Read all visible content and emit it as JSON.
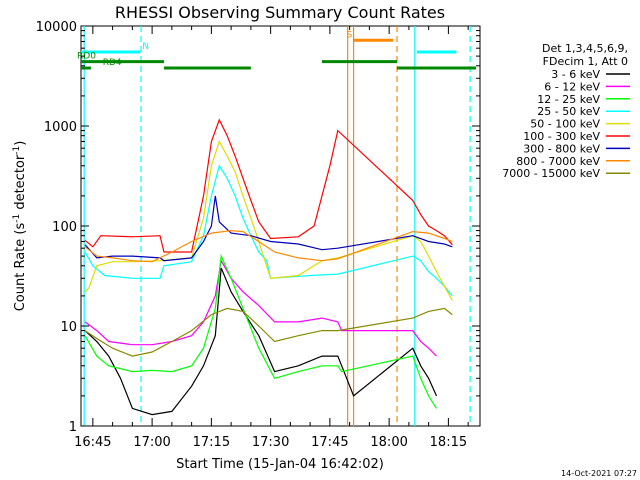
{
  "chart_data": {
    "type": "line",
    "title": "RHESSI Observing Summary Count Rates",
    "xlabel": "Start Time (15-Jan-04 16:42:02)",
    "ylabel_main": "Count Rate (s",
    "ylabel_sup1": "-1",
    "ylabel_mid": " detector",
    "ylabel_sup2": "-1",
    "ylabel_end": ")",
    "yscale": "log",
    "ylim": [
      1,
      10000
    ],
    "xlim_minutes": [
      -3,
      98
    ],
    "x_unit": "minutes from 16:45",
    "yticks": [
      {
        "v": 1,
        "label": "1"
      },
      {
        "v": 10,
        "label": "10"
      },
      {
        "v": 100,
        "label": "100"
      },
      {
        "v": 1000,
        "label": "1000"
      },
      {
        "v": 10000,
        "label": "10000"
      }
    ],
    "xticks": [
      {
        "m": 0,
        "label": "16:45"
      },
      {
        "m": 15,
        "label": "17:00"
      },
      {
        "m": 30,
        "label": "17:15"
      },
      {
        "m": 45,
        "label": "17:30"
      },
      {
        "m": 60,
        "label": "17:45"
      },
      {
        "m": 75,
        "label": "18:00"
      },
      {
        "m": 90,
        "label": "18:15"
      }
    ],
    "legend_header": [
      "Det 1,3,4,5,6,9,",
      "FDecim 1, Att 0"
    ],
    "series": [
      {
        "name": "3 - 6 keV",
        "color": "#000000",
        "points": [
          [
            -2,
            9
          ],
          [
            1,
            7
          ],
          [
            4,
            5
          ],
          [
            7,
            3
          ],
          [
            10,
            1.5
          ],
          [
            15,
            1.3
          ],
          [
            20,
            1.4
          ],
          [
            25,
            2.5
          ],
          [
            28,
            4
          ],
          [
            31,
            8
          ],
          [
            32.5,
            38
          ],
          [
            35,
            22
          ],
          [
            38,
            14
          ],
          [
            42,
            8
          ],
          [
            46,
            3.5
          ],
          [
            52,
            4
          ],
          [
            58,
            5
          ],
          [
            62,
            5
          ],
          [
            63,
            4
          ],
          [
            66,
            2
          ],
          [
            81,
            6
          ],
          [
            83,
            4
          ],
          [
            85,
            3
          ],
          [
            87,
            2
          ]
        ]
      },
      {
        "name": "6 - 12 keV",
        "color": "#ff00ff",
        "points": [
          [
            -2,
            11
          ],
          [
            1,
            9
          ],
          [
            4,
            7
          ],
          [
            10,
            6.5
          ],
          [
            15,
            6.5
          ],
          [
            20,
            7
          ],
          [
            25,
            8
          ],
          [
            28,
            11
          ],
          [
            31,
            20
          ],
          [
            32.5,
            45
          ],
          [
            35,
            30
          ],
          [
            38,
            22
          ],
          [
            42,
            16
          ],
          [
            46,
            11
          ],
          [
            52,
            11
          ],
          [
            58,
            12
          ],
          [
            62,
            11
          ],
          [
            63,
            9
          ],
          [
            81,
            9
          ],
          [
            83,
            7
          ],
          [
            85,
            6
          ],
          [
            87,
            5
          ]
        ]
      },
      {
        "name": "12 - 25 keV",
        "color": "#00ff00",
        "points": [
          [
            -2,
            8
          ],
          [
            1,
            5
          ],
          [
            4,
            4
          ],
          [
            10,
            3.5
          ],
          [
            15,
            3.6
          ],
          [
            20,
            3.5
          ],
          [
            25,
            4
          ],
          [
            28,
            6
          ],
          [
            31,
            15
          ],
          [
            32.5,
            50
          ],
          [
            35,
            30
          ],
          [
            38,
            15
          ],
          [
            42,
            6
          ],
          [
            46,
            3
          ],
          [
            52,
            3.5
          ],
          [
            58,
            4
          ],
          [
            62,
            4
          ],
          [
            63,
            3.5
          ],
          [
            81,
            5
          ],
          [
            83,
            3
          ],
          [
            85,
            2
          ],
          [
            87,
            1.5
          ]
        ]
      },
      {
        "name": "25 - 50 keV",
        "color": "#00ffff",
        "points": [
          [
            -2,
            55
          ],
          [
            0,
            40
          ],
          [
            3,
            32
          ],
          [
            10,
            30
          ],
          [
            17,
            30
          ],
          [
            18,
            40
          ],
          [
            25,
            44
          ],
          [
            28,
            80
          ],
          [
            30,
            200
          ],
          [
            32,
            400
          ],
          [
            34,
            300
          ],
          [
            36,
            200
          ],
          [
            38,
            120
          ],
          [
            40,
            80
          ],
          [
            42,
            55
          ],
          [
            44,
            45
          ],
          [
            45,
            30
          ],
          [
            55,
            32
          ],
          [
            62,
            33
          ],
          [
            81,
            50
          ],
          [
            83,
            45
          ],
          [
            85,
            35
          ],
          [
            87,
            30
          ],
          [
            89,
            25
          ],
          [
            91,
            20
          ]
        ]
      },
      {
        "name": "50 - 100 keV",
        "color": "#dddd00",
        "points": [
          [
            -2,
            22
          ],
          [
            -1,
            24
          ],
          [
            1,
            40
          ],
          [
            5,
            44
          ],
          [
            10,
            44
          ],
          [
            17,
            45
          ],
          [
            20,
            46
          ],
          [
            25,
            48
          ],
          [
            28,
            120
          ],
          [
            30,
            400
          ],
          [
            32,
            700
          ],
          [
            34,
            500
          ],
          [
            36,
            350
          ],
          [
            38,
            200
          ],
          [
            40,
            120
          ],
          [
            42,
            70
          ],
          [
            45,
            30
          ],
          [
            52,
            32
          ],
          [
            58,
            45
          ],
          [
            62,
            48
          ],
          [
            81,
            80
          ],
          [
            83,
            70
          ],
          [
            85,
            50
          ],
          [
            87,
            35
          ],
          [
            89,
            25
          ],
          [
            91,
            18
          ]
        ]
      },
      {
        "name": "100 - 300 keV",
        "color": "#ff0000",
        "points": [
          [
            -2,
            72
          ],
          [
            0,
            62
          ],
          [
            2,
            80
          ],
          [
            10,
            78
          ],
          [
            17,
            80
          ],
          [
            18,
            55
          ],
          [
            25,
            55
          ],
          [
            28,
            200
          ],
          [
            30,
            700
          ],
          [
            32,
            1150
          ],
          [
            34,
            800
          ],
          [
            36,
            500
          ],
          [
            38,
            300
          ],
          [
            40,
            180
          ],
          [
            42,
            110
          ],
          [
            45,
            75
          ],
          [
            52,
            78
          ],
          [
            56,
            100
          ],
          [
            58,
            200
          ],
          [
            60,
            400
          ],
          [
            62,
            900
          ],
          [
            81,
            180
          ],
          [
            83,
            130
          ],
          [
            85,
            100
          ],
          [
            87,
            90
          ],
          [
            89,
            80
          ],
          [
            91,
            65
          ]
        ]
      },
      {
        "name": "300 - 800 keV",
        "color": "#0000bb",
        "points": [
          [
            -2,
            65
          ],
          [
            1,
            48
          ],
          [
            5,
            50
          ],
          [
            10,
            50
          ],
          [
            17,
            48
          ],
          [
            18,
            45
          ],
          [
            25,
            48
          ],
          [
            28,
            70
          ],
          [
            30,
            100
          ],
          [
            31,
            200
          ],
          [
            32,
            110
          ],
          [
            35,
            85
          ],
          [
            40,
            80
          ],
          [
            45,
            70
          ],
          [
            52,
            66
          ],
          [
            58,
            58
          ],
          [
            62,
            60
          ],
          [
            81,
            80
          ],
          [
            85,
            70
          ],
          [
            89,
            66
          ],
          [
            91,
            62
          ]
        ]
      },
      {
        "name": "800 - 7000 keV",
        "color": "#ff8800",
        "points": [
          [
            -2,
            62
          ],
          [
            1,
            50
          ],
          [
            5,
            48
          ],
          [
            10,
            45
          ],
          [
            15,
            44
          ],
          [
            20,
            55
          ],
          [
            25,
            70
          ],
          [
            30,
            85
          ],
          [
            35,
            90
          ],
          [
            38,
            88
          ],
          [
            42,
            70
          ],
          [
            46,
            55
          ],
          [
            52,
            48
          ],
          [
            58,
            45
          ],
          [
            62,
            47
          ],
          [
            81,
            88
          ],
          [
            85,
            85
          ],
          [
            89,
            75
          ],
          [
            91,
            70
          ]
        ]
      },
      {
        "name": "7000 - 15000 keV",
        "color": "#888800",
        "points": [
          [
            -2,
            9
          ],
          [
            1,
            7.5
          ],
          [
            5,
            6
          ],
          [
            10,
            5
          ],
          [
            15,
            5.5
          ],
          [
            20,
            7
          ],
          [
            25,
            9
          ],
          [
            30,
            13
          ],
          [
            34,
            15
          ],
          [
            38,
            14
          ],
          [
            42,
            10
          ],
          [
            46,
            7
          ],
          [
            52,
            8
          ],
          [
            58,
            9
          ],
          [
            62,
            9
          ],
          [
            81,
            12
          ],
          [
            85,
            14
          ],
          [
            89,
            15
          ],
          [
            91,
            13
          ]
        ]
      }
    ],
    "state_bars": [
      {
        "label": "N",
        "color": "#00ffff",
        "y": 5500,
        "segments": [
          [
            -3,
            12
          ],
          [
            82,
            92
          ]
        ],
        "label_at": 12.5
      },
      {
        "label": "S",
        "color": "#ff8800",
        "y": 7200,
        "segments": [
          [
            66,
            76
          ]
        ],
        "label_at": 64.2
      },
      {
        "label": "RD0",
        "color": "#008800",
        "y": 4400,
        "segments": [
          [
            -3,
            18
          ],
          [
            58,
            77
          ]
        ],
        "label_at": -4
      },
      {
        "label": "RD4",
        "color": "#008800",
        "y": 3800,
        "segments": [
          [
            -3,
            -0.5
          ],
          [
            18,
            40
          ],
          [
            77,
            97
          ]
        ],
        "label_at": 2.5
      }
    ],
    "vlines": [
      {
        "m": -2.2,
        "color": "#00ffff",
        "dash": false
      },
      {
        "m": 12.2,
        "color": "#00ffff",
        "dash": true
      },
      {
        "m": 81.5,
        "color": "#00ffff",
        "dash": false
      },
      {
        "m": 95.5,
        "color": "#00ffff",
        "dash": true
      },
      {
        "m": 64.5,
        "color": "#ff8800",
        "dash": false
      },
      {
        "m": 66.0,
        "color": "#ff8800",
        "dash": false
      },
      {
        "m": 77.0,
        "color": "#ff8800",
        "dash": true
      }
    ],
    "footer": "14-Oct-2021 07:27"
  }
}
